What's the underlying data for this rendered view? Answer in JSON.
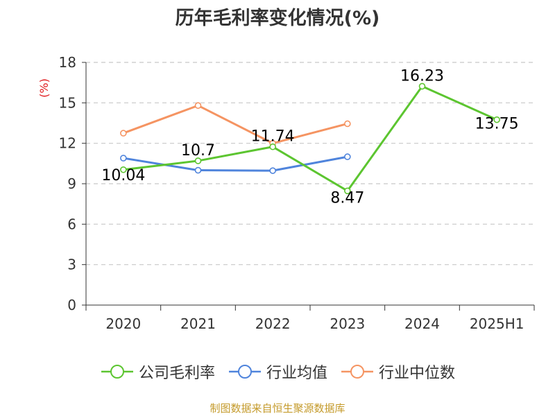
{
  "title": "历年毛利率变化情况(%)",
  "source": "制图数据来自恒生聚源数据库",
  "colors": {
    "gross_margin": "#5cc530",
    "industry_mean": "#4f84dc",
    "industry_median": "#f59462",
    "grid": "#c8c8c8",
    "axis": "#333333",
    "unit_label": "#e0181b",
    "source": "#c49a2a"
  },
  "chart_data": {
    "type": "line",
    "title": "历年毛利率变化情况(%)",
    "ylabel": "(%)",
    "xlabel": "",
    "categories": [
      "2020",
      "2021",
      "2022",
      "2023",
      "2024",
      "2025H1"
    ],
    "ylim": [
      0,
      18
    ],
    "yticks": [
      0,
      3,
      6,
      9,
      12,
      15,
      18
    ],
    "grid": true,
    "legend_position": "bottom",
    "series": [
      {
        "name": "公司毛利率",
        "color": "#5cc530",
        "values": [
          10.04,
          10.7,
          11.74,
          8.47,
          16.23,
          13.75
        ],
        "labels": [
          "10.04",
          "10.7",
          "11.74",
          "8.47",
          "16.23",
          "13.75"
        ]
      },
      {
        "name": "行业均值",
        "color": "#4f84dc",
        "values": [
          10.9,
          10.0,
          9.97,
          11.0,
          null,
          null
        ]
      },
      {
        "name": "行业中位数",
        "color": "#f59462",
        "values": [
          12.75,
          14.8,
          12.0,
          13.45,
          null,
          null
        ]
      }
    ]
  }
}
